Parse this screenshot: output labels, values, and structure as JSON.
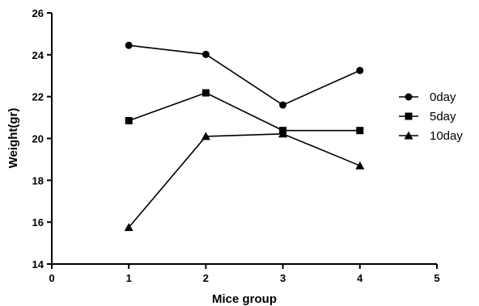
{
  "chart_data": {
    "type": "line",
    "title": "",
    "xlabel": "Mice group",
    "ylabel": "Weight(gr)",
    "xlim": [
      0,
      5
    ],
    "ylim": [
      14,
      26
    ],
    "x_ticks": [
      "0",
      "1",
      "2",
      "3",
      "4",
      "5"
    ],
    "y_ticks": [
      "14",
      "16",
      "18",
      "20",
      "22",
      "24",
      "26"
    ],
    "grid": false,
    "legend_position": "right",
    "x": [
      1,
      2,
      3,
      4
    ],
    "series": [
      {
        "name": "0day",
        "marker": "circle",
        "values": [
          24.45,
          24.02,
          21.6,
          23.25
        ]
      },
      {
        "name": "5day",
        "marker": "square",
        "values": [
          20.85,
          22.18,
          20.38,
          20.38
        ]
      },
      {
        "name": "10day",
        "marker": "triangle",
        "values": [
          15.75,
          20.1,
          20.22,
          18.7
        ]
      }
    ]
  }
}
